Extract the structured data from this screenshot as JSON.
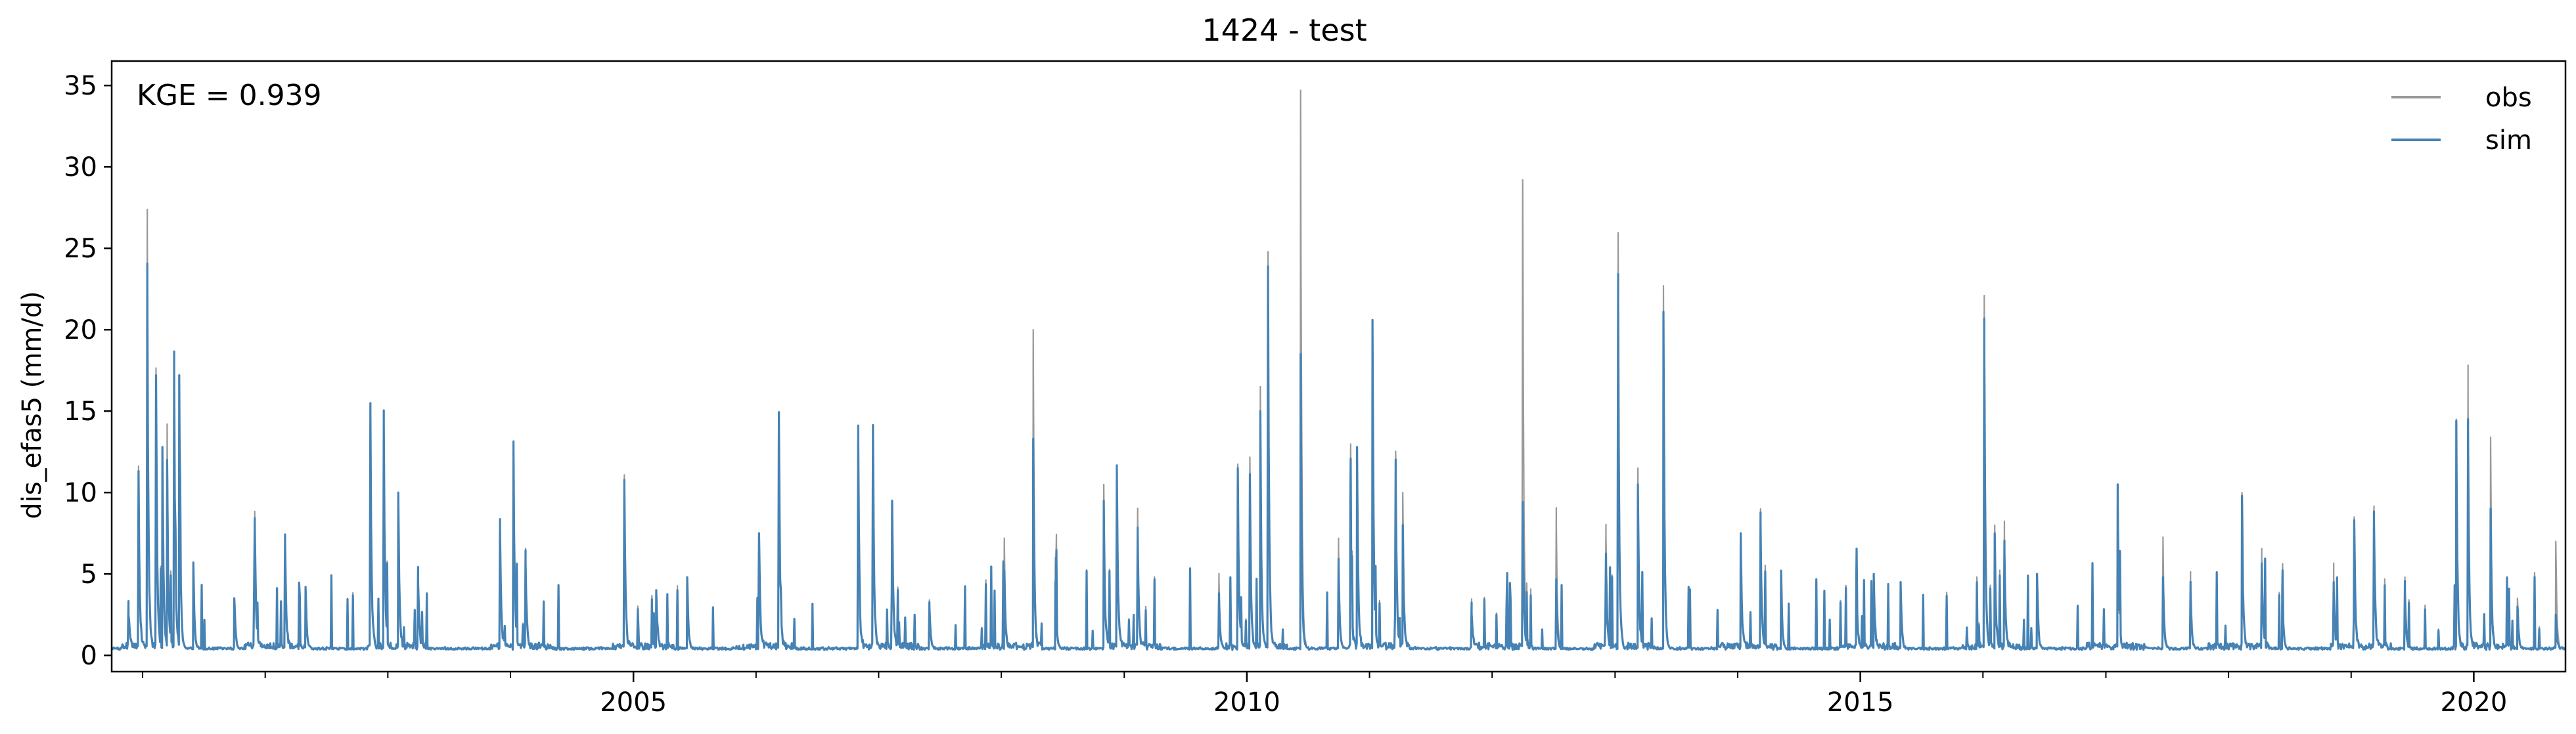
{
  "chart_data": {
    "type": "line",
    "title": "1424 - test",
    "ylabel": "dis_efas5 (mm/d)",
    "xlabel": "",
    "annotation": "KGE = 0.939",
    "xlim": [
      "2000-10-01",
      "2020-09-30"
    ],
    "ylim": [
      -1,
      36.5
    ],
    "yticks": [
      0,
      5,
      10,
      15,
      20,
      25,
      30,
      35
    ],
    "xticks": [
      {
        "date": "2005-01-01",
        "label": "2005"
      },
      {
        "date": "2010-01-01",
        "label": "2010"
      },
      {
        "date": "2015-01-01",
        "label": "2015"
      },
      {
        "date": "2020-01-01",
        "label": "2020"
      }
    ],
    "grid": false,
    "legend": {
      "position": "top-right"
    },
    "series": [
      {
        "name": "obs",
        "color": "#999999",
        "peaks": [
          [
            "2000-11-20",
            2.5
          ],
          [
            "2000-12-20",
            11.2
          ],
          [
            "2001-01-15",
            25.8
          ],
          [
            "2001-02-10",
            17.2
          ],
          [
            "2001-03-01",
            12.8
          ],
          [
            "2001-03-15",
            14.2
          ],
          [
            "2001-04-05",
            17.4
          ],
          [
            "2001-04-20",
            17.2
          ],
          [
            "2001-06-01",
            5.7
          ],
          [
            "2001-10-01",
            3.5
          ],
          [
            "2001-12-01",
            8.0
          ],
          [
            "2002-03-01",
            7.0
          ],
          [
            "2002-05-01",
            4.2
          ],
          [
            "2002-11-10",
            15.0
          ],
          [
            "2002-12-20",
            14.2
          ],
          [
            "2003-02-01",
            10.0
          ],
          [
            "2003-04-01",
            4.5
          ],
          [
            "2003-12-01",
            7.7
          ],
          [
            "2004-01-10",
            12.9
          ],
          [
            "2004-02-15",
            5.7
          ],
          [
            "2004-12-05",
            10.5
          ],
          [
            "2005-03-10",
            4.0
          ],
          [
            "2005-06-10",
            4.8
          ],
          [
            "2006-01-10",
            7.5
          ],
          [
            "2006-03-10",
            14.5
          ],
          [
            "2006-11-01",
            13.6
          ],
          [
            "2006-12-15",
            13.8
          ],
          [
            "2007-02-10",
            9.5
          ],
          [
            "2007-06-01",
            3.0
          ],
          [
            "2008-01-10",
            7.2
          ],
          [
            "2008-04-05",
            20.0
          ],
          [
            "2008-06-10",
            6.0
          ],
          [
            "2008-11-01",
            10.5
          ],
          [
            "2008-12-10",
            11.5
          ],
          [
            "2009-02-10",
            8.5
          ],
          [
            "2009-10-10",
            4.5
          ],
          [
            "2009-12-05",
            11.5
          ],
          [
            "2010-01-10",
            12.0
          ],
          [
            "2010-02-10",
            16.5
          ],
          [
            "2010-03-05",
            24.8
          ],
          [
            "2010-06-10",
            34.7
          ],
          [
            "2010-10-01",
            6.5
          ],
          [
            "2010-11-05",
            10.5
          ],
          [
            "2010-11-25",
            12.8
          ],
          [
            "2011-01-10",
            20.6
          ],
          [
            "2011-03-20",
            12.5
          ],
          [
            "2011-04-10",
            10.0
          ],
          [
            "2011-11-01",
            2.8
          ],
          [
            "2012-04-01",
            29.2
          ],
          [
            "2012-07-10",
            8.2
          ],
          [
            "2012-12-05",
            7.3
          ],
          [
            "2013-01-10",
            25.8
          ],
          [
            "2013-03-10",
            11.5
          ],
          [
            "2013-05-25",
            22.7
          ],
          [
            "2014-01-10",
            7.5
          ],
          [
            "2014-03-10",
            8.2
          ],
          [
            "2014-05-10",
            5.2
          ],
          [
            "2014-12-20",
            5.0
          ],
          [
            "2015-02-10",
            5.0
          ],
          [
            "2015-05-01",
            4.5
          ],
          [
            "2016-01-05",
            22.1
          ],
          [
            "2016-02-05",
            8.0
          ],
          [
            "2016-03-05",
            7.5
          ],
          [
            "2016-06-10",
            5.0
          ],
          [
            "2017-02-05",
            10.5
          ],
          [
            "2017-06-20",
            7.0
          ],
          [
            "2017-09-10",
            4.5
          ],
          [
            "2018-02-10",
            10.0
          ],
          [
            "2018-04-10",
            6.0
          ],
          [
            "2018-06-10",
            4.5
          ],
          [
            "2018-11-10",
            4.8
          ],
          [
            "2019-01-10",
            8.5
          ],
          [
            "2019-03-10",
            8.5
          ],
          [
            "2019-06-10",
            4.5
          ],
          [
            "2019-11-10",
            14.5
          ],
          [
            "2019-12-15",
            15.3
          ],
          [
            "2020-02-20",
            13.4
          ],
          [
            "2020-05-10",
            3.5
          ],
          [
            "2020-09-01",
            7.0
          ]
        ]
      },
      {
        "name": "sim",
        "color": "#4682b4",
        "peaks": [
          [
            "2000-11-20",
            2.5
          ],
          [
            "2000-12-20",
            11.2
          ],
          [
            "2001-01-15",
            23.1
          ],
          [
            "2001-02-10",
            17.2
          ],
          [
            "2001-03-01",
            12.8
          ],
          [
            "2001-03-15",
            12.0
          ],
          [
            "2001-04-05",
            17.4
          ],
          [
            "2001-04-20",
            17.2
          ],
          [
            "2001-06-01",
            5.7
          ],
          [
            "2001-10-01",
            3.5
          ],
          [
            "2001-12-01",
            8.0
          ],
          [
            "2002-03-01",
            7.0
          ],
          [
            "2002-05-01",
            4.2
          ],
          [
            "2002-11-10",
            15.0
          ],
          [
            "2002-12-20",
            14.2
          ],
          [
            "2003-02-01",
            10.0
          ],
          [
            "2003-04-01",
            4.5
          ],
          [
            "2003-12-01",
            7.7
          ],
          [
            "2004-01-10",
            12.9
          ],
          [
            "2004-02-15",
            5.7
          ],
          [
            "2004-12-05",
            10.5
          ],
          [
            "2005-03-10",
            4.0
          ],
          [
            "2005-06-10",
            4.8
          ],
          [
            "2006-01-10",
            7.5
          ],
          [
            "2006-03-10",
            14.5
          ],
          [
            "2006-11-01",
            13.6
          ],
          [
            "2006-12-15",
            13.8
          ],
          [
            "2007-02-10",
            9.5
          ],
          [
            "2007-06-01",
            3.0
          ],
          [
            "2008-01-10",
            5.2
          ],
          [
            "2008-04-05",
            13.3
          ],
          [
            "2008-06-10",
            4.5
          ],
          [
            "2008-11-01",
            9.5
          ],
          [
            "2008-12-10",
            11.5
          ],
          [
            "2009-02-10",
            7.5
          ],
          [
            "2009-10-10",
            3.5
          ],
          [
            "2009-12-05",
            11.5
          ],
          [
            "2010-01-10",
            11.0
          ],
          [
            "2010-02-10",
            15.0
          ],
          [
            "2010-03-05",
            23.6
          ],
          [
            "2010-06-10",
            18.5
          ],
          [
            "2010-10-01",
            5.5
          ],
          [
            "2010-11-05",
            9.5
          ],
          [
            "2010-11-25",
            12.8
          ],
          [
            "2011-01-10",
            20.6
          ],
          [
            "2011-03-20",
            11.0
          ],
          [
            "2011-04-10",
            8.0
          ],
          [
            "2011-11-01",
            2.5
          ],
          [
            "2012-04-01",
            9.2
          ],
          [
            "2012-07-10",
            4.0
          ],
          [
            "2012-12-05",
            5.5
          ],
          [
            "2013-01-10",
            21.9
          ],
          [
            "2013-03-10",
            10.5
          ],
          [
            "2013-05-25",
            21.1
          ],
          [
            "2014-01-10",
            7.5
          ],
          [
            "2014-03-10",
            8.2
          ],
          [
            "2014-05-10",
            5.2
          ],
          [
            "2014-12-20",
            4.8
          ],
          [
            "2015-02-10",
            5.0
          ],
          [
            "2015-05-01",
            4.5
          ],
          [
            "2016-01-05",
            19.2
          ],
          [
            "2016-02-05",
            7.5
          ],
          [
            "2016-03-05",
            6.5
          ],
          [
            "2016-06-10",
            5.0
          ],
          [
            "2017-02-05",
            10.5
          ],
          [
            "2017-06-20",
            4.5
          ],
          [
            "2017-09-10",
            4.0
          ],
          [
            "2018-02-10",
            9.8
          ],
          [
            "2018-04-10",
            5.5
          ],
          [
            "2018-06-10",
            4.0
          ],
          [
            "2018-11-10",
            4.0
          ],
          [
            "2019-01-10",
            8.3
          ],
          [
            "2019-03-10",
            8.3
          ],
          [
            "2019-06-10",
            4.0
          ],
          [
            "2019-11-10",
            14.4
          ],
          [
            "2019-12-15",
            13.5
          ],
          [
            "2020-02-20",
            9.0
          ],
          [
            "2020-05-10",
            3.0
          ],
          [
            "2020-09-01",
            2.5
          ]
        ]
      }
    ]
  }
}
